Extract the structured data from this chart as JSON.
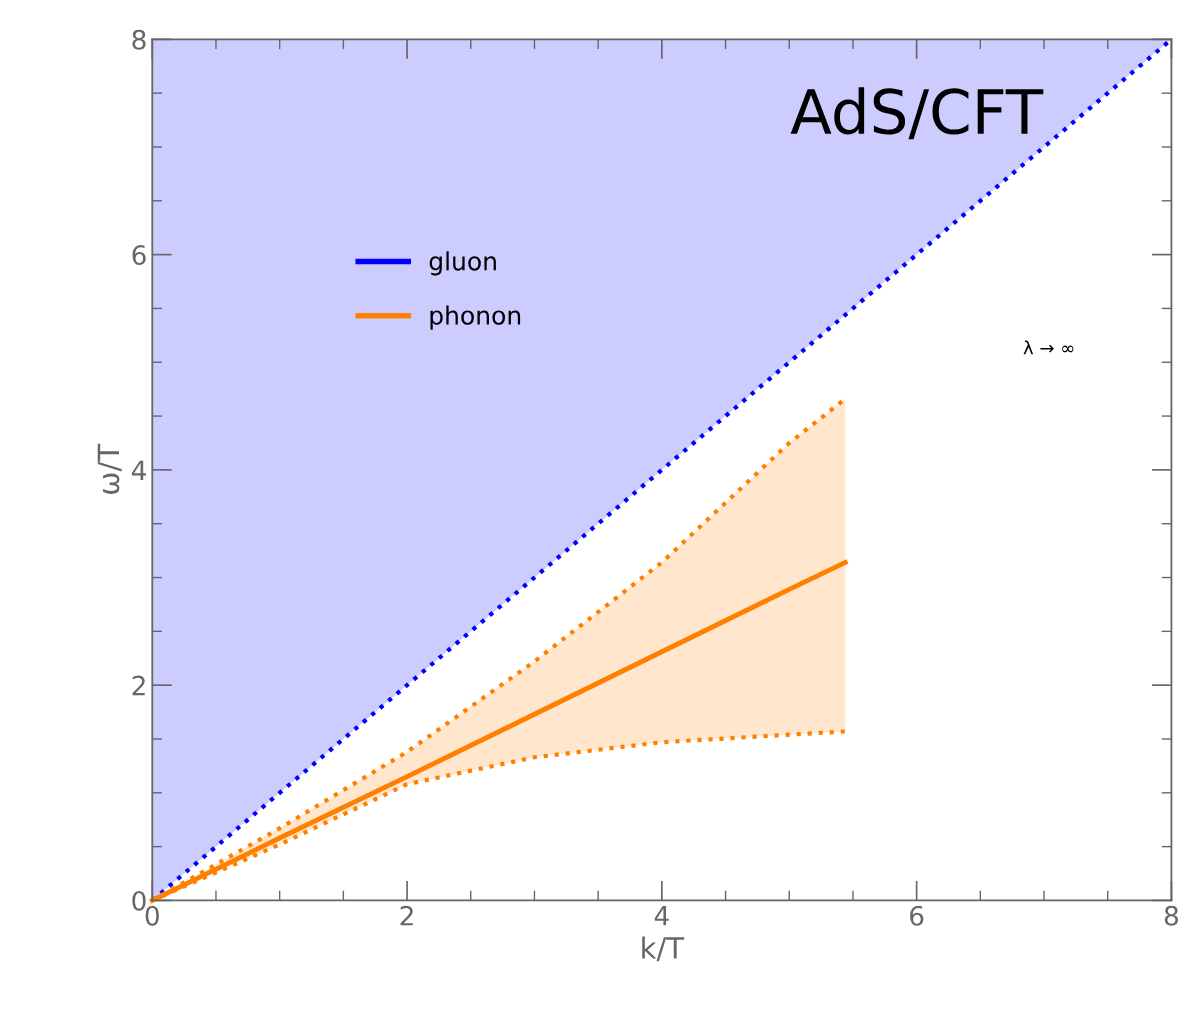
{
  "chart_data": {
    "type": "line",
    "xlabel": "k/T",
    "ylabel": "ω/T",
    "annotations": [
      "AdS/CFT",
      "λ → ∞"
    ],
    "series": [
      {
        "name": "gluon",
        "color": "#0000ff",
        "line_style": "dotted",
        "x": [
          0,
          8
        ],
        "values": [
          0,
          8
        ],
        "lower": [
          0,
          8
        ],
        "upper": [
          8,
          8
        ]
      },
      {
        "name": "phonon",
        "color": "#ff8000",
        "line_style": "solid",
        "x": [
          0,
          1,
          2,
          3,
          4,
          5,
          5.44
        ],
        "values": [
          0,
          0.58,
          1.15,
          1.73,
          2.31,
          2.89,
          3.14
        ],
        "lower": [
          0,
          0.52,
          1.08,
          1.33,
          1.47,
          1.54,
          1.57
        ],
        "upper": [
          0,
          0.67,
          1.38,
          2.22,
          3.14,
          4.25,
          4.66
        ]
      },
      {
        "color": "#ff8000",
        "line_style": "dotted",
        "x": [
          0,
          1,
          2,
          3,
          4,
          5,
          5.44
        ],
        "values": [
          0,
          0.52,
          1.08,
          1.33,
          1.47,
          1.54,
          1.57
        ]
      },
      {
        "color": "#ff8000",
        "line_style": "dotted",
        "x": [
          0,
          1,
          2,
          3,
          4,
          5,
          5.44
        ],
        "values": [
          0,
          0.67,
          1.38,
          2.22,
          3.14,
          4.25,
          4.66
        ]
      }
    ],
    "xlim": [
      0,
      8
    ],
    "ylim": [
      0,
      8
    ],
    "xticks": [
      0,
      2,
      4,
      6,
      8
    ],
    "yticks": [
      0,
      2,
      4,
      6,
      8
    ],
    "grid": false,
    "legend": "top left"
  }
}
